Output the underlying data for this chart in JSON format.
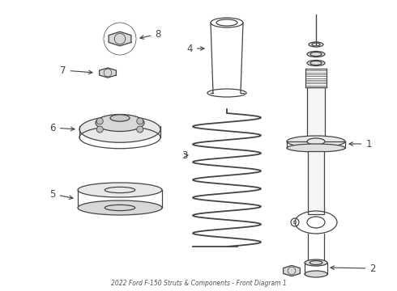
{
  "title": "2022 Ford F-150 Struts & Components - Front Diagram 1",
  "bg_color": "#ffffff",
  "line_color": "#444444",
  "label_color": "#111111",
  "figsize": [
    4.9,
    3.6
  ],
  "dpi": 100
}
